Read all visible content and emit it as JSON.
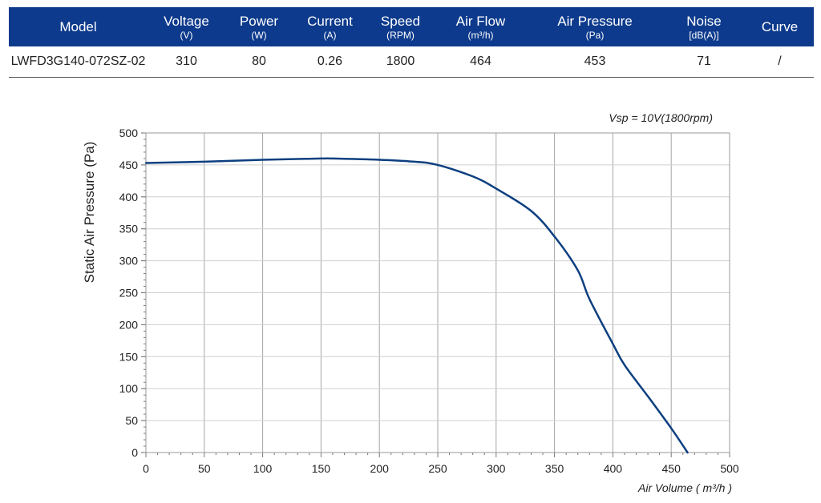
{
  "table": {
    "headers": [
      {
        "label": "Model",
        "unit": ""
      },
      {
        "label": "Voltage",
        "unit": "(V)"
      },
      {
        "label": "Power",
        "unit": "(W)"
      },
      {
        "label": "Current",
        "unit": "(A)"
      },
      {
        "label": "Speed",
        "unit": "(RPM)"
      },
      {
        "label": "Air Flow",
        "unit": "(m³/h)"
      },
      {
        "label": "Air Pressure",
        "unit": "(Pa)"
      },
      {
        "label": "Noise",
        "unit": "[dB(A)]"
      },
      {
        "label": "Curve",
        "unit": ""
      }
    ],
    "row": [
      "LWFD3G140-072SZ-02",
      "310",
      "80",
      "0.26",
      "1800",
      "464",
      "453",
      "71",
      "/"
    ],
    "header_color": "#0d3a8c"
  },
  "chart_data": {
    "type": "line",
    "annotation": "Vsp = 10V(1800rpm)",
    "xlabel": "Air Volume ( m³/h )",
    "ylabel": "Static Air Pressure  (Pa)",
    "xlim": [
      0,
      500
    ],
    "ylim": [
      0,
      500
    ],
    "x_ticks": [
      "0",
      "50",
      "100",
      "150",
      "200",
      "250",
      "300",
      "350",
      "400",
      "450",
      "500"
    ],
    "y_ticks": [
      "0",
      "50",
      "100",
      "150",
      "200",
      "250",
      "300",
      "350",
      "400",
      "450",
      "500"
    ],
    "grid": true,
    "line_color": "#0d3f80",
    "series": [
      {
        "x": [
          0,
          50,
          100,
          150,
          160,
          200,
          230,
          250,
          280,
          300,
          330,
          350,
          370,
          380,
          400,
          410,
          430,
          450,
          464
        ],
        "y": [
          453,
          455,
          458,
          460,
          460,
          458,
          455,
          450,
          432,
          413,
          378,
          338,
          285,
          240,
          170,
          137,
          88,
          38,
          0
        ]
      }
    ]
  }
}
